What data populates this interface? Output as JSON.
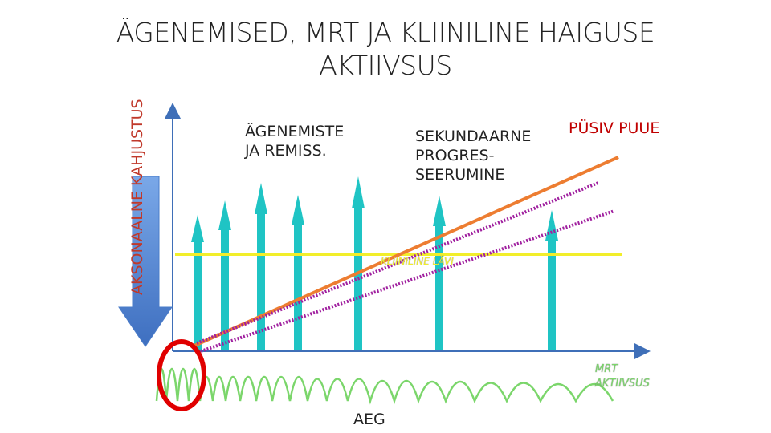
{
  "title": {
    "line1": "ÄGENEMISED, MRT JA KLIINILINE HAIGUSE",
    "line2": "AKTIIVSUS"
  },
  "labels": {
    "relapses": [
      "ÄGENEMISTE",
      "JA REMISS."
    ],
    "secondary": [
      "SEKUNDAARNE",
      "PROGRES-",
      "SEERUMINE"
    ],
    "permanent": "PÜSIV PUUE",
    "clinical_threshold": "KLIINILINE LÄVI",
    "mrt": [
      "MRT",
      "AKTIIVSUS"
    ],
    "time": "AEG",
    "axonal": "AKSONAALNE KAHJUSTUS"
  },
  "colors": {
    "axis": "#3f6fb8",
    "relapse_arrows": "#1fc4c4",
    "orange_line": "#ed7d31",
    "purple_dotted": "#a0209f",
    "yellow_threshold": "#f2ee2a",
    "mrt_waves": "#7bd66b",
    "red_circle": "#e00000",
    "big_arrow": "#5b8fd6"
  }
}
